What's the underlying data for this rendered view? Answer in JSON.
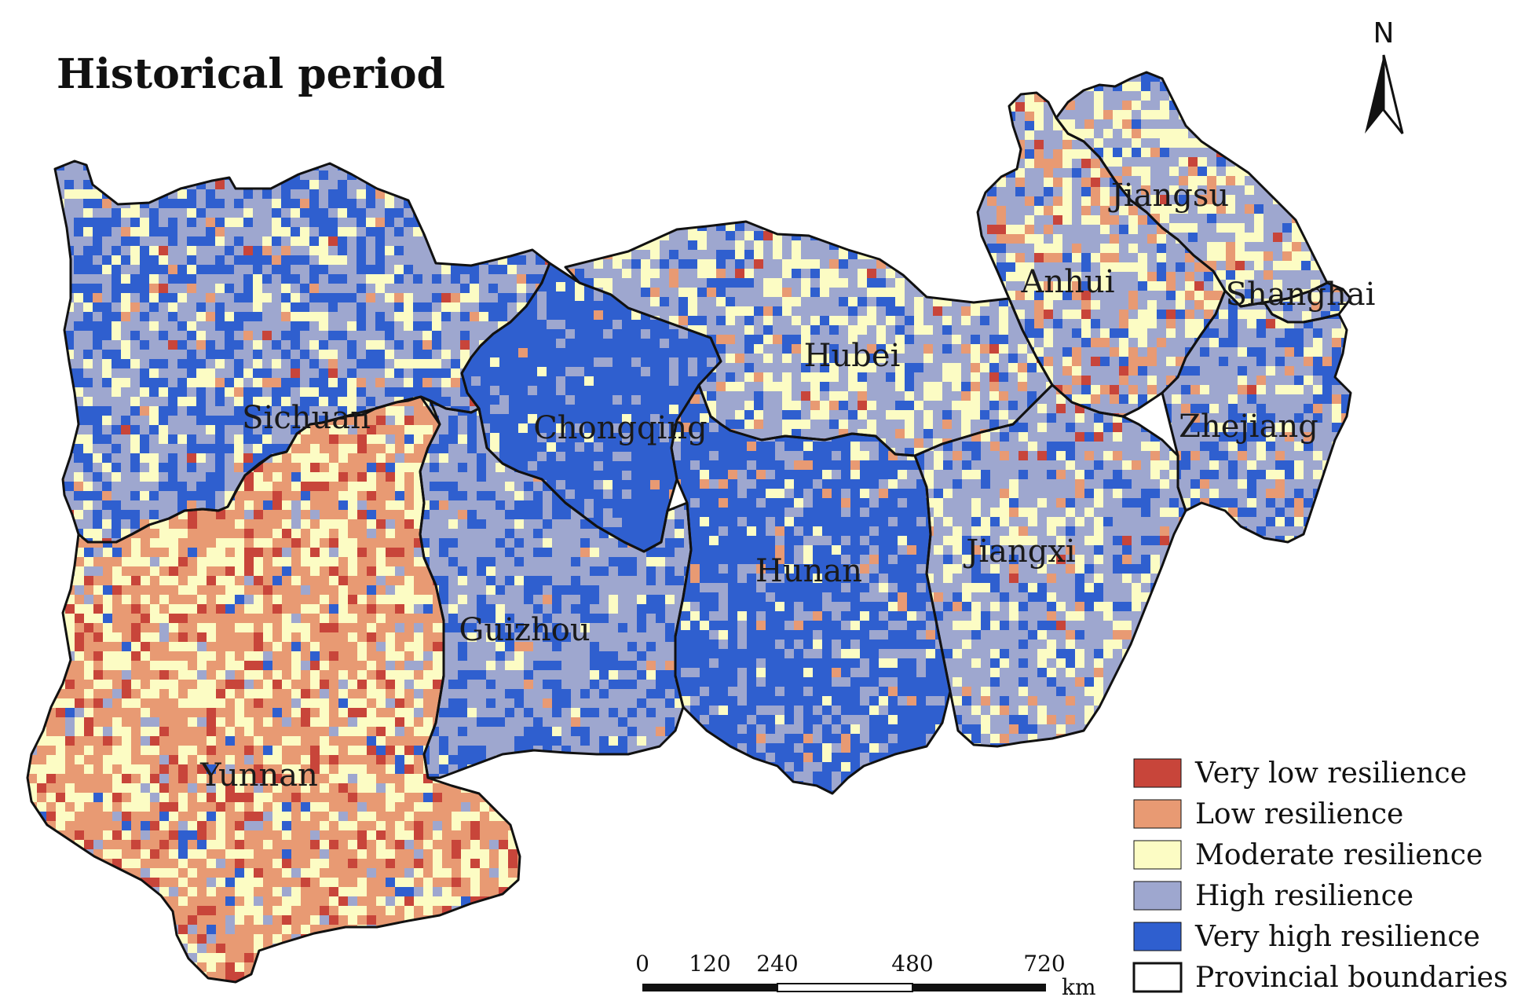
{
  "title": "Historical period",
  "north_label": "N",
  "provinces": [
    {
      "id": "sichuan",
      "label": "Sichuan",
      "class": 3
    },
    {
      "id": "chongqing",
      "label": "Chongqing",
      "class": 4
    },
    {
      "id": "yunnan",
      "label": "Yunnan",
      "class": 1
    },
    {
      "id": "guizhou",
      "label": "Guizhou",
      "class": 3
    },
    {
      "id": "hubei",
      "label": "Hubei",
      "class": 3
    },
    {
      "id": "hunan",
      "label": "Hunan",
      "class": 4
    },
    {
      "id": "jiangxi",
      "label": "Jiangxi",
      "class": 3
    },
    {
      "id": "anhui",
      "label": "Anhui",
      "class": 3
    },
    {
      "id": "jiangsu",
      "label": "Jiangsu",
      "class": 3
    },
    {
      "id": "shanghai",
      "label": "Shanghai",
      "class": 3
    },
    {
      "id": "zhejiang",
      "label": "Zhejiang",
      "class": 3
    }
  ],
  "legend": {
    "items": [
      {
        "label": "Very low resilience",
        "color": "#c8453a"
      },
      {
        "label": "Low resilience",
        "color": "#e89a73"
      },
      {
        "label": "Moderate resilience",
        "color": "#fcfcc4"
      },
      {
        "label": "High resilience",
        "color": "#9ea7cf"
      },
      {
        "label": "Very high resilience",
        "color": "#2f5fcf"
      },
      {
        "label": "Provincial boundaries",
        "color": "#ffffff"
      }
    ]
  },
  "scale_bar": {
    "ticks": [
      "0",
      "120",
      "240",
      "480",
      "720"
    ],
    "unit": "km"
  },
  "colors": {
    "very_low": "#c8453a",
    "low": "#e89a73",
    "moderate": "#fcfcc4",
    "high": "#9ea7cf",
    "very_high": "#2f5fcf",
    "boundary": "#111111"
  }
}
